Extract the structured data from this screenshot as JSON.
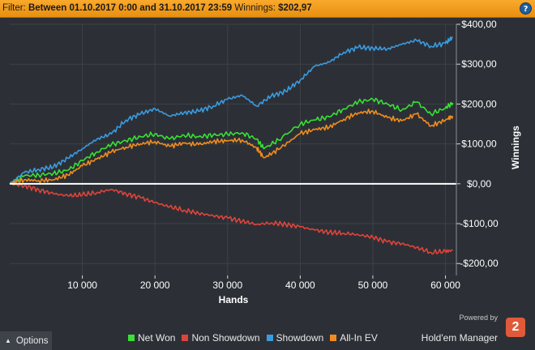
{
  "filter": {
    "label": "Filter:",
    "range": "Between 01.10.2017 0:00 and 31.10.2017 23:59",
    "winnings_label": "Winnings:",
    "winnings_value": "$202,97",
    "help_icon": "help-icon",
    "help_text": "?"
  },
  "colors": {
    "net_won": "#39e035",
    "non_showdown": "#e0433b",
    "showdown": "#3a9be0",
    "all_in_ev": "#f08c1e",
    "zero_line": "#ffffff",
    "background": "#2c3036",
    "header": "#f5a020"
  },
  "chart_data": {
    "type": "line",
    "xlabel": "Hands",
    "ylabel": "Winnings",
    "xlim": [
      0,
      61500
    ],
    "ylim": [
      -230,
      400
    ],
    "xticks": [
      10000,
      20000,
      30000,
      40000,
      50000,
      60000
    ],
    "xtick_labels": [
      "10 000",
      "20 000",
      "30 000",
      "40 000",
      "50 000",
      "60 000"
    ],
    "yticks": [
      400,
      300,
      200,
      100,
      0,
      -100,
      -200
    ],
    "ytick_labels": [
      "$400,00",
      "$300,00",
      "$200,00",
      "$100,00",
      "$0,00",
      "-$100,00",
      "-$200,00"
    ],
    "grid": true,
    "legend_position": "bottom",
    "series": [
      {
        "name": "Net Won",
        "color": "#39e035",
        "x": [
          0,
          2000,
          4000,
          6000,
          8000,
          10000,
          12000,
          14000,
          16000,
          18000,
          20000,
          22000,
          24000,
          26000,
          28000,
          30000,
          32000,
          34000,
          35000,
          37000,
          40000,
          42000,
          44000,
          46000,
          48000,
          50000,
          52000,
          54000,
          56000,
          58000,
          60000,
          61000
        ],
        "y": [
          0,
          20,
          22,
          26,
          34,
          58,
          80,
          98,
          108,
          118,
          125,
          112,
          122,
          118,
          122,
          124,
          128,
          112,
          88,
          110,
          150,
          160,
          168,
          188,
          205,
          212,
          200,
          185,
          205,
          175,
          190,
          202.97
        ]
      },
      {
        "name": "Non Showdown",
        "color": "#e0433b",
        "x": [
          0,
          2000,
          4000,
          6000,
          8000,
          10000,
          12000,
          14000,
          16000,
          18000,
          20000,
          22000,
          24000,
          26000,
          28000,
          30000,
          32000,
          34000,
          36000,
          38000,
          40000,
          42000,
          44000,
          46000,
          48000,
          50000,
          52000,
          54000,
          56000,
          58000,
          60000,
          61000
        ],
        "y": [
          0,
          -5,
          -15,
          -25,
          -30,
          -28,
          -22,
          -14,
          -25,
          -35,
          -47,
          -58,
          -66,
          -74,
          -80,
          -86,
          -94,
          -102,
          -98,
          -102,
          -108,
          -116,
          -122,
          -124,
          -128,
          -134,
          -146,
          -150,
          -160,
          -172,
          -170,
          -167
        ]
      },
      {
        "name": "Showdown",
        "color": "#3a9be0",
        "x": [
          0,
          2000,
          4000,
          6000,
          8000,
          10000,
          12000,
          14000,
          16000,
          18000,
          20000,
          22000,
          24000,
          26000,
          28000,
          30000,
          32000,
          34000,
          36000,
          38000,
          40000,
          42000,
          44000,
          46000,
          48000,
          50000,
          52000,
          54000,
          56000,
          58000,
          60000,
          61000
        ],
        "y": [
          0,
          28,
          36,
          42,
          64,
          88,
          112,
          125,
          160,
          175,
          188,
          170,
          178,
          182,
          195,
          212,
          222,
          195,
          220,
          232,
          260,
          295,
          305,
          330,
          342,
          340,
          338,
          350,
          360,
          345,
          352,
          368
        ]
      },
      {
        "name": "All-In EV",
        "color": "#f08c1e",
        "x": [
          0,
          2000,
          4000,
          6000,
          8000,
          10000,
          12000,
          14000,
          16000,
          18000,
          20000,
          22000,
          24000,
          26000,
          28000,
          30000,
          32000,
          34000,
          35000,
          37000,
          40000,
          42000,
          44000,
          46000,
          48000,
          50000,
          52000,
          54000,
          56000,
          58000,
          60000,
          61000
        ],
        "y": [
          0,
          10,
          8,
          10,
          22,
          45,
          62,
          80,
          92,
          100,
          106,
          94,
          102,
          98,
          106,
          108,
          110,
          90,
          65,
          86,
          126,
          136,
          142,
          162,
          178,
          182,
          166,
          158,
          175,
          145,
          160,
          170
        ]
      }
    ]
  },
  "bottom": {
    "options_label": "Options",
    "options_icon": "chevron-up-icon",
    "powered_by": "Powered by",
    "brand_name": "Hold'em Manager",
    "brand_logo_text": "2"
  }
}
